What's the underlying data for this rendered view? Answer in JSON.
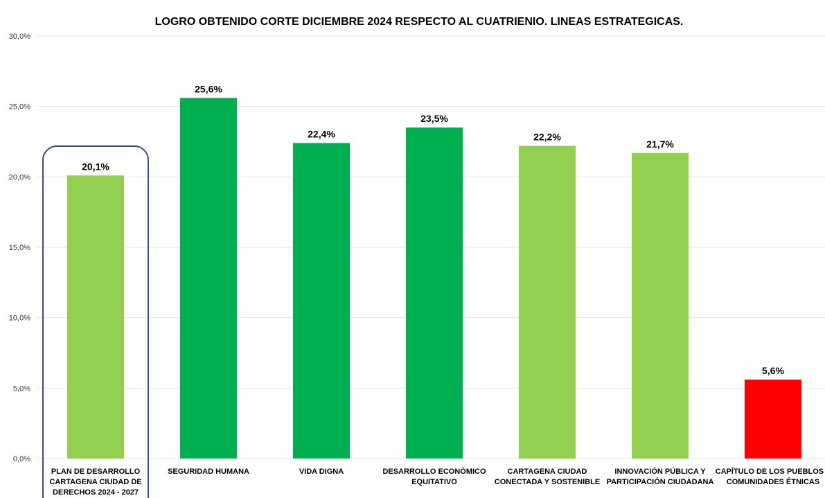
{
  "chart_data": {
    "type": "bar",
    "title": "LOGRO OBTENIDO  CORTE DICIEMBRE  2024 RESPECTO AL CUATRIENIO. LINEAS ESTRATEGICAS.",
    "xlabel": "",
    "ylabel": "",
    "ylim": [
      0,
      30
    ],
    "y_ticks": [
      "0,0%",
      "5,0%",
      "10,0%",
      "15,0%",
      "20,0%",
      "25,0%",
      "30,0%"
    ],
    "grid": true,
    "categories": [
      [
        "PLAN DE DESARROLLO",
        "CARTAGENA CIUDAD DE",
        "DERECHOS 2024 - 2027"
      ],
      [
        "SEGURIDAD HUMANA"
      ],
      [
        "VIDA DIGNA"
      ],
      [
        "DESARROLLO ECONÓMICO",
        "EQUITATIVO"
      ],
      [
        "CARTAGENA CIUDAD",
        "CONECTADA Y SOSTENIBLE"
      ],
      [
        "INNOVACIÓN PÚBLICA Y",
        "PARTICIPACIÓN CIUDADANA"
      ],
      [
        "CAPÍTULO DE LOS PUEBLOS Y",
        "COMUNIDADES ÉTNICAS"
      ]
    ],
    "values": [
      20.1,
      25.6,
      22.4,
      23.5,
      22.2,
      21.7,
      5.6
    ],
    "value_labels": [
      "20,1%",
      "25,6%",
      "22,4%",
      "23,5%",
      "22,2%",
      "21,7%",
      "5,6%"
    ],
    "bar_colors": [
      "#92d050",
      "#00b050",
      "#00b050",
      "#00b050",
      "#92d050",
      "#92d050",
      "#ff0000"
    ],
    "highlighted_category_index": 0,
    "highlight_color": "#2f4e8a",
    "grid_color": "#e6e6e6"
  }
}
